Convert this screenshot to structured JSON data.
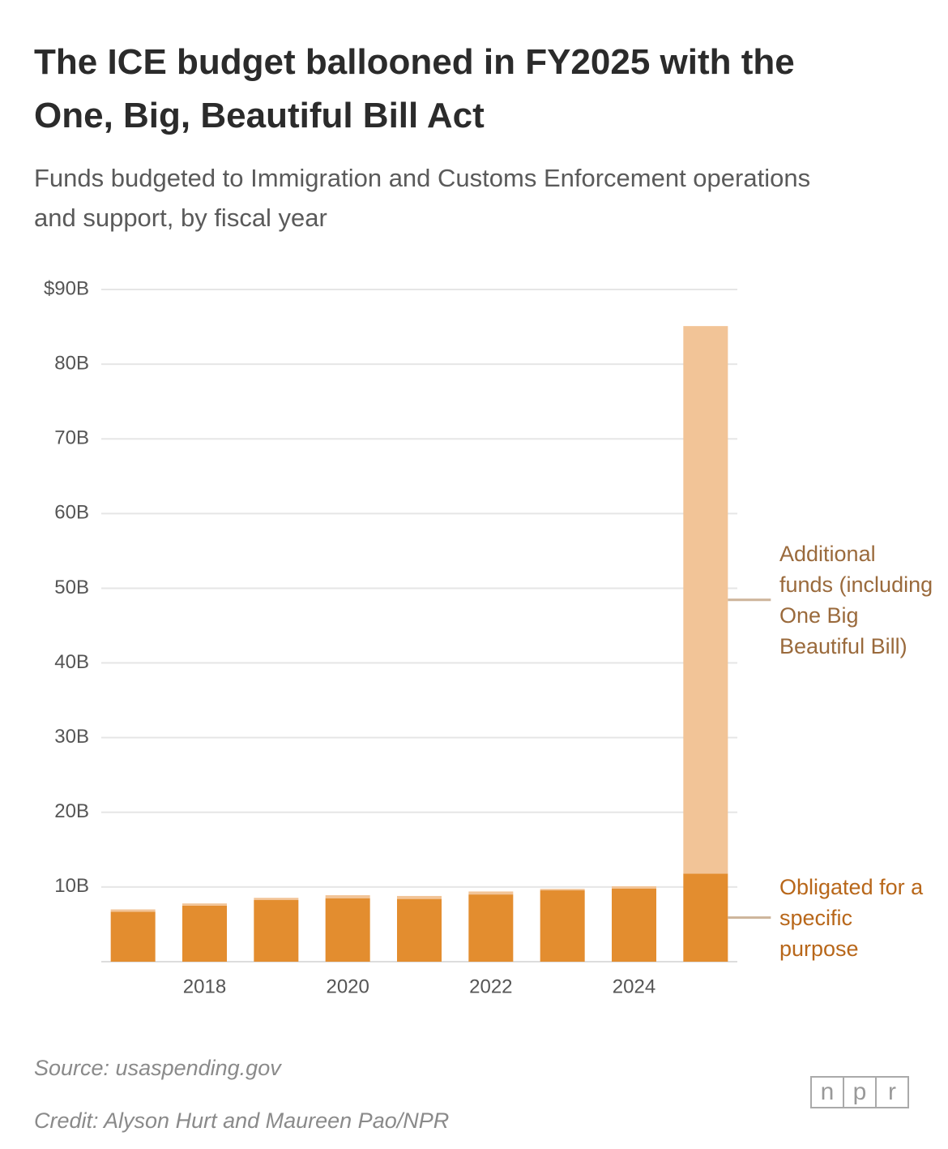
{
  "chart_data": {
    "type": "stacked_bar",
    "title": "The ICE budget ballooned in FY2025 with the One, Big, Beautiful Bill Act",
    "subtitle": "Funds budgeted to Immigration and Customs Enforcement operations and support, by fiscal year",
    "categories": [
      null,
      "2018",
      null,
      "2020",
      null,
      "2022",
      null,
      "2024",
      null
    ],
    "series": [
      {
        "name": "Obligated for a specific purpose",
        "color": "#e38d2f",
        "label_color": "#b8671a",
        "values": [
          6.7,
          7.5,
          8.25,
          8.5,
          8.4,
          9.0,
          9.55,
          9.8,
          11.8
        ]
      },
      {
        "name": "Additional funds (including One Big Beautiful Bill)",
        "color": "#f2c497",
        "label_color": "#9a6a3c",
        "values": [
          0.3,
          0.3,
          0.3,
          0.4,
          0.4,
          0.4,
          0.2,
          0.3,
          73.3
        ]
      }
    ],
    "ylim": [
      0,
      90
    ],
    "yticks": [
      {
        "value": 10,
        "label": "10B"
      },
      {
        "value": 20,
        "label": "20B"
      },
      {
        "value": 30,
        "label": "30B"
      },
      {
        "value": 40,
        "label": "40B"
      },
      {
        "value": 50,
        "label": "50B"
      },
      {
        "value": 60,
        "label": "60B"
      },
      {
        "value": 70,
        "label": "70B"
      },
      {
        "value": 80,
        "label": "80B"
      },
      {
        "value": 90,
        "label": "$90B"
      }
    ],
    "grid": true,
    "source": "Source: usaspending.gov",
    "credit": "Credit: Alyson Hurt and Maureen Pao/NPR",
    "logo": [
      "n",
      "p",
      "r"
    ]
  }
}
